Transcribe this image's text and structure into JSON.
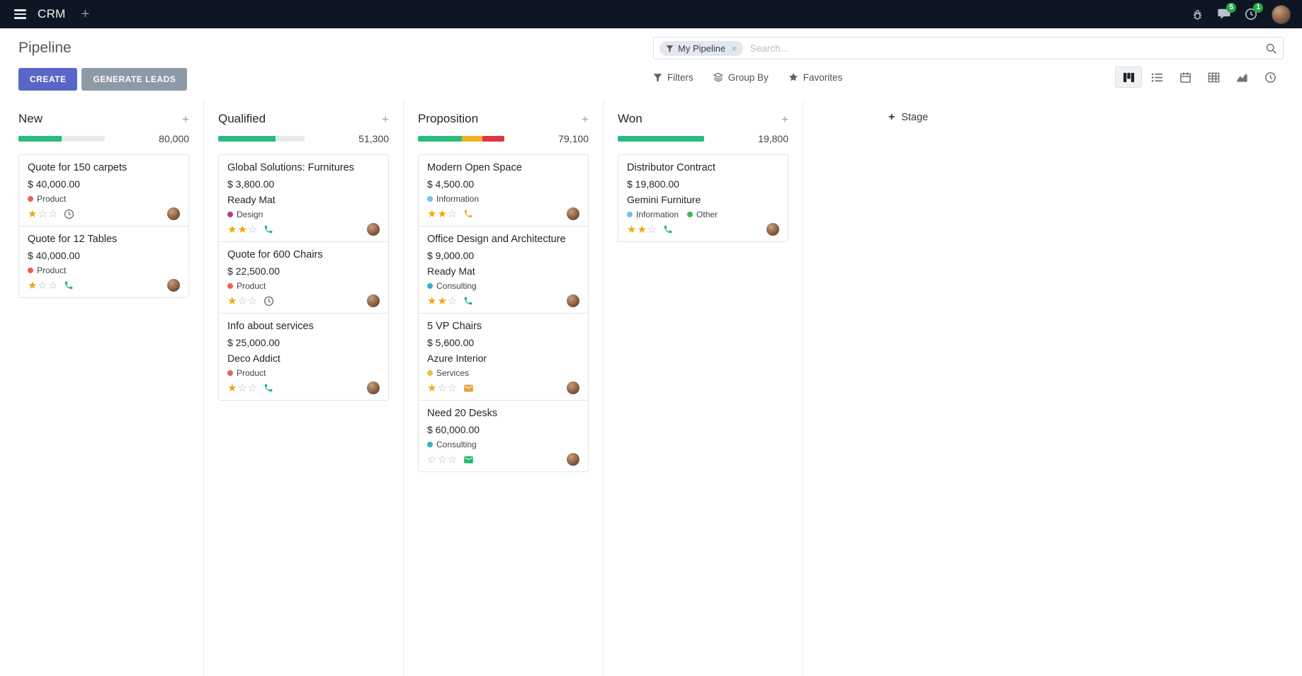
{
  "topbar": {
    "app_name": "CRM",
    "messages_badge": "5",
    "activities_badge": "1"
  },
  "control_panel": {
    "title": "Pipeline",
    "buttons": {
      "create": "CREATE",
      "generate_leads": "GENERATE LEADS"
    },
    "search": {
      "facet": "My Pipeline",
      "placeholder": "Search..."
    },
    "toolbar": {
      "filters": "Filters",
      "group_by": "Group By",
      "favorites": "Favorites"
    }
  },
  "glyphs": {
    "star_filled": "★",
    "star_empty": "☆",
    "plus": "+",
    "close": "×"
  },
  "board": {
    "add_stage_label": "Stage",
    "columns": [
      {
        "name": "New",
        "total": "80,000",
        "progress": {
          "track": "#e7eaec",
          "segments": [
            {
              "color": "#2abb7f",
              "pct": 50
            }
          ]
        },
        "cards": [
          {
            "title": "Quote for 150 carpets",
            "amount": "$ 40,000.00",
            "partner": "",
            "tags": [
              {
                "label": "Product",
                "color": "#f06050"
              }
            ],
            "stars": 1,
            "activity": {
              "icon": "clock",
              "color": "#6c757d"
            }
          },
          {
            "title": "Quote for 12 Tables",
            "amount": "$ 40,000.00",
            "partner": "",
            "tags": [
              {
                "label": "Product",
                "color": "#f06050"
              }
            ],
            "stars": 1,
            "activity": {
              "icon": "phone",
              "color": "#26b56b"
            }
          }
        ]
      },
      {
        "name": "Qualified",
        "total": "51,300",
        "progress": {
          "track": "#e7eaec",
          "segments": [
            {
              "color": "#2abb7f",
              "pct": 66
            }
          ]
        },
        "cards": [
          {
            "title": "Global Solutions: Furnitures",
            "amount": "$ 3,800.00",
            "partner": "Ready Mat",
            "tags": [
              {
                "label": "Design",
                "color": "#ad3e98"
              }
            ],
            "stars": 2,
            "activity": {
              "icon": "phone",
              "color": "#26b56b"
            }
          },
          {
            "title": "Quote for 600 Chairs",
            "amount": "$ 22,500.00",
            "partner": "",
            "tags": [
              {
                "label": "Product",
                "color": "#f06050"
              }
            ],
            "stars": 1,
            "activity": {
              "icon": "clock",
              "color": "#6c757d"
            }
          },
          {
            "title": "Info about services",
            "amount": "$ 25,000.00",
            "partner": "Deco Addict",
            "tags": [
              {
                "label": "Product",
                "color": "#f06050"
              }
            ],
            "stars": 1,
            "activity": {
              "icon": "phone",
              "color": "#26b56b"
            }
          }
        ]
      },
      {
        "name": "Proposition",
        "total": "79,100",
        "progress": {
          "track": "#e7eaec",
          "segments": [
            {
              "color": "#2abb7f",
              "pct": 51
            },
            {
              "color": "#efb023",
              "pct": 24
            },
            {
              "color": "#dc3545",
              "pct": 25
            }
          ]
        },
        "cards": [
          {
            "title": "Modern Open Space",
            "amount": "$ 4,500.00",
            "partner": "",
            "tags": [
              {
                "label": "Information",
                "color": "#6ec2ee"
              }
            ],
            "stars": 2,
            "activity": {
              "icon": "phone",
              "color": "#efaf3b"
            }
          },
          {
            "title": "Office Design and Architecture",
            "amount": "$ 9,000.00",
            "partner": "Ready Mat",
            "tags": [
              {
                "label": "Consulting",
                "color": "#35b2c9"
              }
            ],
            "stars": 2,
            "activity": {
              "icon": "phone",
              "color": "#26b56b"
            }
          },
          {
            "title": "5 VP Chairs",
            "amount": "$ 5,600.00",
            "partner": "Azure Interior",
            "tags": [
              {
                "label": "Services",
                "color": "#edbd42"
              }
            ],
            "stars": 1,
            "activity": {
              "icon": "mail",
              "color": "#e0a23e"
            }
          },
          {
            "title": "Need 20 Desks",
            "amount": "$ 60,000.00",
            "partner": "",
            "tags": [
              {
                "label": "Consulting",
                "color": "#35b2c9"
              }
            ],
            "stars": 0,
            "activity": {
              "icon": "mail",
              "color": "#26b56b"
            }
          }
        ]
      },
      {
        "name": "Won",
        "total": "19,800",
        "progress": {
          "track": "#e7eaec",
          "segments": [
            {
              "color": "#2abb7f",
              "pct": 100
            }
          ]
        },
        "cards": [
          {
            "title": "Distributor Contract",
            "amount": "$ 19,800.00",
            "partner": "Gemini Furniture",
            "tags": [
              {
                "label": "Information",
                "color": "#6ec2ee"
              },
              {
                "label": "Other",
                "color": "#41b653"
              }
            ],
            "stars": 2,
            "activity": {
              "icon": "phone",
              "color": "#26b56b"
            }
          }
        ]
      }
    ]
  }
}
